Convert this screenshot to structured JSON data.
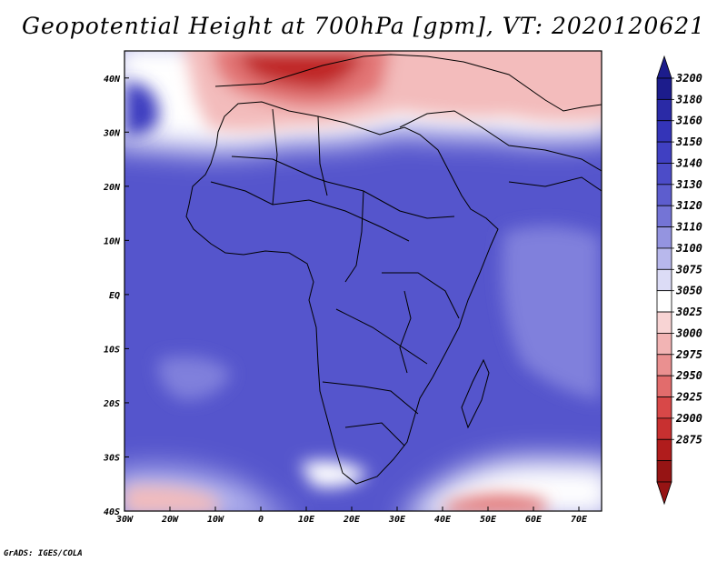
{
  "title": "Geopotential Height at 700hPa [gpm], VT: 2020120621",
  "footer": "GrADS: IGES/COLA",
  "map": {
    "projection": "lat-lon",
    "lon_range": [
      -30,
      75
    ],
    "lat_range": [
      -40,
      45
    ],
    "lon_ticks": [
      {
        "value": -30,
        "label": "30W"
      },
      {
        "value": -20,
        "label": "20W"
      },
      {
        "value": -10,
        "label": "10W"
      },
      {
        "value": 0,
        "label": "0"
      },
      {
        "value": 10,
        "label": "10E"
      },
      {
        "value": 20,
        "label": "20E"
      },
      {
        "value": 30,
        "label": "30E"
      },
      {
        "value": 40,
        "label": "40E"
      },
      {
        "value": 50,
        "label": "50E"
      },
      {
        "value": 60,
        "label": "60E"
      },
      {
        "value": 70,
        "label": "70E"
      }
    ],
    "lat_ticks": [
      {
        "value": 40,
        "label": "40N"
      },
      {
        "value": 30,
        "label": "30N"
      },
      {
        "value": 20,
        "label": "20N"
      },
      {
        "value": 10,
        "label": "10N"
      },
      {
        "value": 0,
        "label": "EQ"
      },
      {
        "value": -10,
        "label": "10S"
      },
      {
        "value": -20,
        "label": "20S"
      },
      {
        "value": -30,
        "label": "30S"
      },
      {
        "value": -40,
        "label": "40S"
      }
    ]
  },
  "colorbar": {
    "labels": [
      "3200",
      "3180",
      "3160",
      "3150",
      "3140",
      "3130",
      "3120",
      "3110",
      "3100",
      "3075",
      "3050",
      "3025",
      "3000",
      "2975",
      "2950",
      "2925",
      "2900",
      "2875"
    ],
    "colors_top_to_bottom": [
      "#1c1c8c",
      "#2a2aa6",
      "#3434b8",
      "#4040c2",
      "#4c4cc8",
      "#5d5dce",
      "#7474d6",
      "#9494e0",
      "#b8b8ec",
      "#dcdcf6",
      "#ffffff",
      "#f8d4d4",
      "#f2b4b4",
      "#ea9090",
      "#e26c6c",
      "#d84848",
      "#c83030",
      "#b01c1c",
      "#961414"
    ],
    "top_arrow_color": "#1c1c8c",
    "bottom_arrow_color": "#961414"
  },
  "field_colors": {
    "deep_blue": "#3a3abf",
    "mid_blue": "#5555cc",
    "light_blue": "#8080dc",
    "pale_blue": "#b9b9ef",
    "white": "#ffffff",
    "pale_red": "#f3bcbc",
    "mid_red": "#e27474",
    "deep_red": "#c02626"
  }
}
